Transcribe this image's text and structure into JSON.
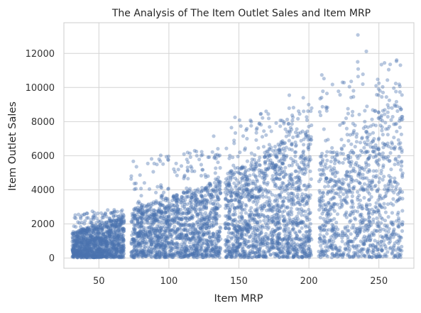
{
  "chart_data": {
    "type": "scatter",
    "title": "The Analysis of The Item Outlet Sales and Item MRP",
    "xlabel": "Item MRP",
    "ylabel": "Item Outlet Sales",
    "xlim": [
      25,
      275
    ],
    "ylim": [
      -600,
      13800
    ],
    "xticks": [
      50,
      100,
      150,
      200,
      250
    ],
    "yticks": [
      0,
      2000,
      4000,
      6000,
      8000,
      10000,
      12000
    ],
    "grid": true,
    "marker_color": "#4c72b0",
    "marker_alpha": 0.4,
    "clusters": [
      {
        "x_range": [
          31,
          68
        ],
        "y_typical_max": 2000,
        "y_max": 3100
      },
      {
        "x_range": [
          73,
          137
        ],
        "y_typical_max": 3800,
        "y_max": 7200
      },
      {
        "x_range": [
          140,
          202
        ],
        "y_typical_max": 6500,
        "y_max": 9600
      },
      {
        "x_range": [
          207,
          267
        ],
        "y_typical_max": 8000,
        "y_max": 13100
      }
    ],
    "outliers": [
      {
        "x": 235,
        "y": 13086
      },
      {
        "x": 241,
        "y": 12117
      },
      {
        "x": 254,
        "y": 11445
      },
      {
        "x": 257,
        "y": 11050
      },
      {
        "x": 224,
        "y": 10306
      },
      {
        "x": 250,
        "y": 10256
      },
      {
        "x": 248,
        "y": 10100
      },
      {
        "x": 262,
        "y": 10236
      },
      {
        "x": 210,
        "y": 9780
      },
      {
        "x": 186,
        "y": 9550
      },
      {
        "x": 196,
        "y": 9400
      },
      {
        "x": 132,
        "y": 7150
      }
    ]
  }
}
